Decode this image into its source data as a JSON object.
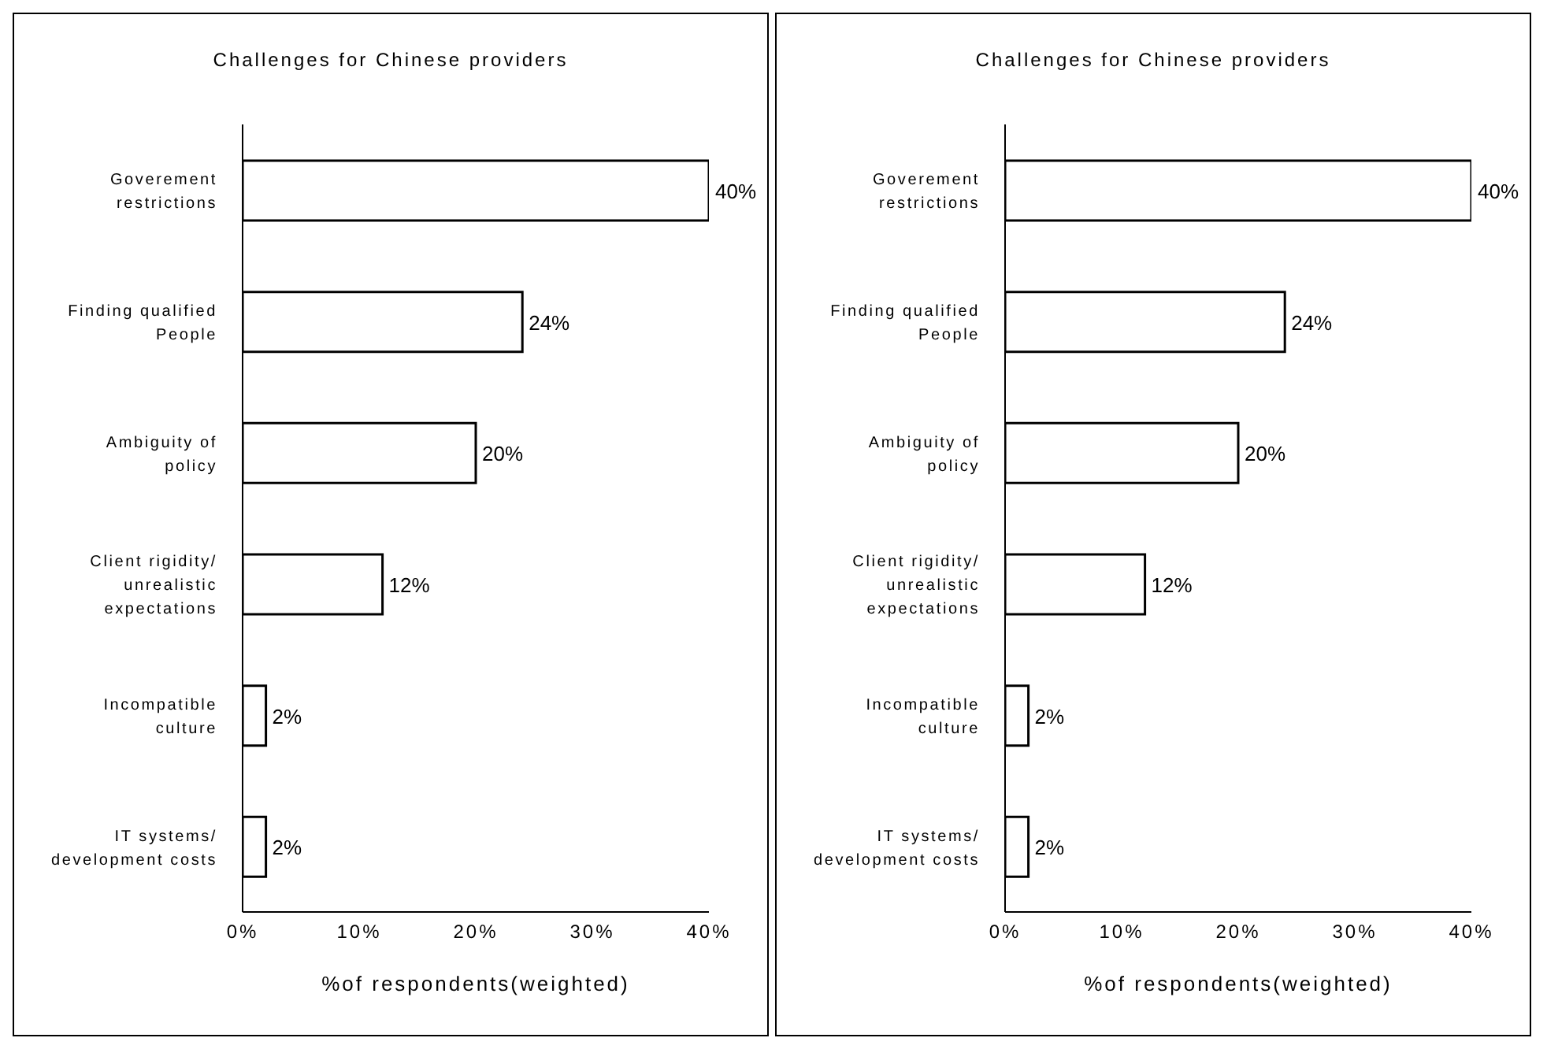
{
  "chart_data": [
    {
      "type": "bar",
      "orientation": "horizontal",
      "title": "Challenges for Chinese providers",
      "xlabel": "%of respondents(weighted)",
      "categories": [
        "Goverement restrictions",
        "Finding qualified People",
        "Ambiguity of policy",
        "Client rigidity/ unrealistic expectations",
        "Incompatible culture",
        "IT systems/ development costs"
      ],
      "values": [
        40,
        24,
        20,
        12,
        2,
        2
      ],
      "value_labels": [
        "40%",
        "24%",
        "20%",
        "12%",
        "2%",
        "2%"
      ],
      "color": "#ffffff",
      "xlim": [
        0,
        40
      ],
      "xticks": [
        {
          "value": 0,
          "label": "0%"
        },
        {
          "value": 10,
          "label": "10%"
        },
        {
          "value": 20,
          "label": "20%"
        },
        {
          "value": 30,
          "label": "30%"
        },
        {
          "value": 40,
          "label": "40%"
        }
      ],
      "grid": false,
      "legend": false
    },
    {
      "type": "bar",
      "orientation": "horizontal",
      "title": "Challenges for Chinese providers",
      "xlabel": "%of respondents(weighted)",
      "categories": [
        "Goverement restrictions",
        "Finding qualified People",
        "Ambiguity of policy",
        "Client rigidity/ unrealistic expectations",
        "Incompatible culture",
        "IT systems/ development costs"
      ],
      "values": [
        40,
        24,
        20,
        12,
        2,
        2
      ],
      "value_labels": [
        "40%",
        "24%",
        "20%",
        "12%",
        "2%",
        "2%"
      ],
      "color": "#ffffff",
      "xlim": [
        0,
        40
      ],
      "xticks": [
        {
          "value": 0,
          "label": "0%"
        },
        {
          "value": 10,
          "label": "10%"
        },
        {
          "value": 20,
          "label": "20%"
        },
        {
          "value": 30,
          "label": "30%"
        },
        {
          "value": 40,
          "label": "40%"
        }
      ],
      "grid": false,
      "legend": false
    }
  ]
}
